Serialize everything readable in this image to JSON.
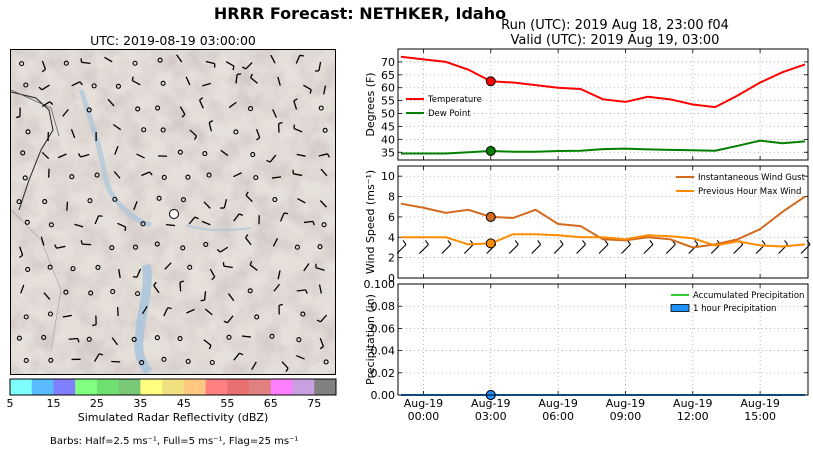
{
  "header": {
    "title": "HRRR Forecast: NETHKER, Idaho",
    "run": "Run (UTC): 2019 Aug 18, 23:00 f04",
    "valid": "Valid (UTC): 2019 Aug 19, 03:00"
  },
  "map": {
    "title": "UTC: 2019-08-19 03:00:00",
    "colorbar": {
      "label": "Simulated Radar Reflectivity (dBZ)",
      "ticks": [
        "5",
        "15",
        "25",
        "35",
        "45",
        "55",
        "65",
        "75"
      ],
      "colors": [
        "#80ffff",
        "#5abcff",
        "#8080ff",
        "#80ff80",
        "#70e070",
        "#78c878",
        "#ffff80",
        "#f0e080",
        "#ffc880",
        "#ff8080",
        "#e87070",
        "#e08080",
        "#ff80ff",
        "#c8a0e0",
        "#808080"
      ]
    },
    "barbs_note": "Barbs: Half=2.5 ms⁻¹, Full=5 ms⁻¹, Flag=25 ms⁻¹"
  },
  "chart_data": [
    {
      "type": "line",
      "ylabel": "Degrees (F)",
      "ylim": [
        32,
        75
      ],
      "yticks": [
        35,
        40,
        45,
        50,
        55,
        60,
        65,
        70
      ],
      "grid": true,
      "legend": "center-left",
      "x": [
        "Aug-18 23:00",
        "Aug-19 00:00",
        "Aug-19 01:00",
        "Aug-19 02:00",
        "Aug-19 03:00",
        "Aug-19 04:00",
        "Aug-19 05:00",
        "Aug-19 06:00",
        "Aug-19 07:00",
        "Aug-19 08:00",
        "Aug-19 09:00",
        "Aug-19 10:00",
        "Aug-19 11:00",
        "Aug-19 12:00",
        "Aug-19 13:00",
        "Aug-19 14:00",
        "Aug-19 15:00",
        "Aug-19 16:00",
        "Aug-19 17:00"
      ],
      "series": [
        {
          "name": "Temperature",
          "color": "#ff0000",
          "values": [
            72,
            71,
            70,
            67,
            62.5,
            62,
            61,
            60,
            59.5,
            55.5,
            54.5,
            56.5,
            55.5,
            53.5,
            52.5,
            57,
            62,
            66,
            69
          ]
        },
        {
          "name": "Dew Point",
          "color": "#008000",
          "values": [
            34.5,
            34.5,
            34.5,
            35,
            35.5,
            35.2,
            35.2,
            35.5,
            35.6,
            36.2,
            36.4,
            36.1,
            35.9,
            35.8,
            35.6,
            37.5,
            39.5,
            38.5,
            39.2
          ]
        }
      ],
      "highlight_x": "Aug-19 03:00"
    },
    {
      "type": "line",
      "ylabel": "Wind Speed (ms⁻¹)",
      "ylim": [
        0,
        11
      ],
      "yticks": [
        0,
        2,
        4,
        6,
        8,
        10
      ],
      "grid": true,
      "legend": "top-right",
      "x": [
        "Aug-18 23:00",
        "Aug-19 00:00",
        "Aug-19 01:00",
        "Aug-19 02:00",
        "Aug-19 03:00",
        "Aug-19 04:00",
        "Aug-19 05:00",
        "Aug-19 06:00",
        "Aug-19 07:00",
        "Aug-19 08:00",
        "Aug-19 09:00",
        "Aug-19 10:00",
        "Aug-19 11:00",
        "Aug-19 12:00",
        "Aug-19 13:00",
        "Aug-19 14:00",
        "Aug-19 15:00",
        "Aug-19 16:00",
        "Aug-19 17:00"
      ],
      "series": [
        {
          "name": "Instantaneous Wind Gust",
          "color": "#d2691e",
          "values": [
            7.3,
            6.9,
            6.4,
            6.7,
            6.0,
            5.9,
            6.7,
            5.3,
            5.1,
            3.8,
            3.7,
            4.0,
            3.8,
            3.0,
            3.3,
            3.8,
            4.8,
            6.5,
            8.0
          ]
        },
        {
          "name": "Previous Hour Max Wind",
          "color": "#ff8c00",
          "values": [
            4.0,
            4.0,
            4.0,
            3.3,
            3.4,
            4.3,
            4.3,
            4.2,
            4.0,
            4.0,
            3.8,
            4.2,
            4.1,
            3.9,
            3.2,
            3.6,
            3.2,
            3.1,
            3.3
          ]
        }
      ],
      "highlight_x": "Aug-19 03:00"
    },
    {
      "type": "line",
      "ylabel": "Precipitation (in)",
      "ylim": [
        0,
        0.1
      ],
      "yticks": [
        0.0,
        0.02,
        0.04,
        0.06,
        0.08,
        0.1
      ],
      "grid": true,
      "legend": "top-right",
      "xticks": [
        {
          "x": "Aug-19 00:00",
          "line1": "Aug-19",
          "line2": "00:00"
        },
        {
          "x": "Aug-19 03:00",
          "line1": "Aug-19",
          "line2": "03:00"
        },
        {
          "x": "Aug-19 06:00",
          "line1": "Aug-19",
          "line2": "06:00"
        },
        {
          "x": "Aug-19 09:00",
          "line1": "Aug-19",
          "line2": "09:00"
        },
        {
          "x": "Aug-19 12:00",
          "line1": "Aug-19",
          "line2": "12:00"
        },
        {
          "x": "Aug-19 15:00",
          "line1": "Aug-19",
          "line2": "15:00"
        }
      ],
      "series": [
        {
          "name": "Accumulated Precipitation",
          "color": "#32cd32",
          "values": [
            0,
            0,
            0,
            0,
            0,
            0,
            0,
            0,
            0,
            0,
            0,
            0,
            0,
            0,
            0,
            0,
            0,
            0,
            0
          ]
        },
        {
          "name": "1 hour Precipitation",
          "color": "#1e90ff",
          "values": [
            0,
            0,
            0,
            0,
            0,
            0,
            0,
            0,
            0,
            0,
            0,
            0,
            0,
            0,
            0,
            0,
            0,
            0,
            0
          ]
        }
      ],
      "highlight_x": "Aug-19 03:00"
    }
  ]
}
